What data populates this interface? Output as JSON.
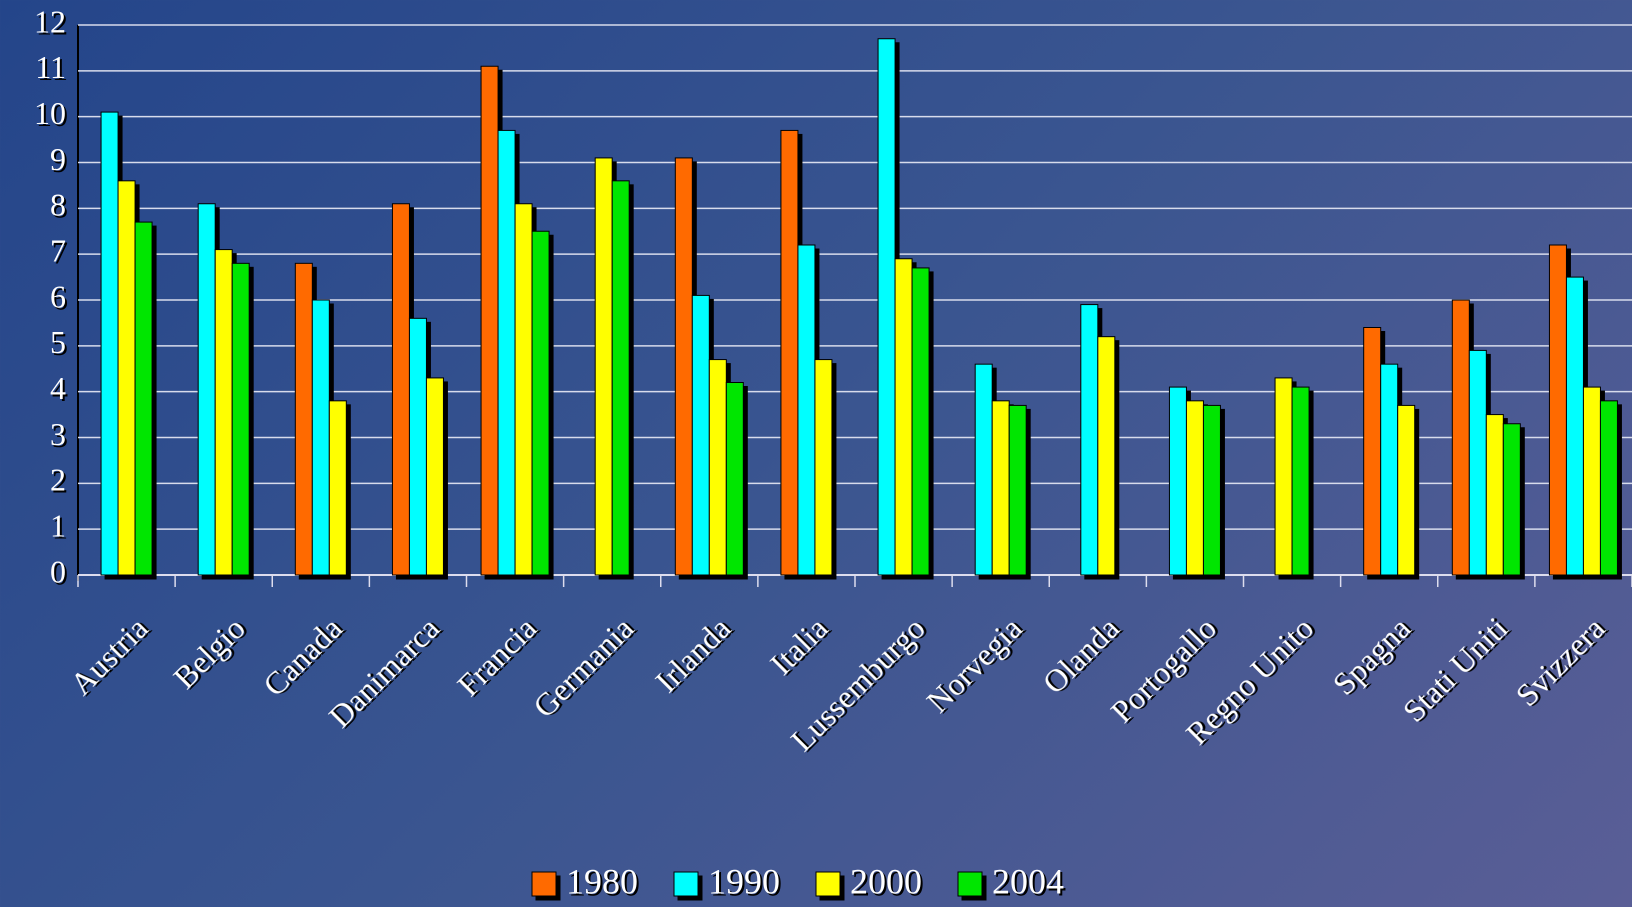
{
  "chart_data": {
    "type": "bar",
    "categories": [
      "Austria",
      "Belgio",
      "Canada",
      "Danimarca",
      "Francia",
      "Germania",
      "Irlanda",
      "Italia",
      "Lussemburgo",
      "Norvegia",
      "Olanda",
      "Portogallo",
      "Regno Unito",
      "Spagna",
      "Stati Uniti",
      "Svizzera"
    ],
    "series": [
      {
        "name": "1980",
        "color": "#ff6a00",
        "values": [
          null,
          null,
          6.8,
          8.1,
          11.1,
          null,
          9.1,
          9.7,
          null,
          null,
          null,
          null,
          null,
          5.4,
          6.0,
          7.2
        ]
      },
      {
        "name": "1990",
        "color": "#00ffff",
        "values": [
          10.1,
          8.1,
          6.0,
          5.6,
          9.7,
          null,
          6.1,
          7.2,
          11.7,
          4.6,
          5.9,
          4.1,
          null,
          4.6,
          4.9,
          6.5
        ]
      },
      {
        "name": "2000",
        "color": "#ffff00",
        "values": [
          8.6,
          7.1,
          3.8,
          4.3,
          8.1,
          9.1,
          4.7,
          4.7,
          6.9,
          3.8,
          5.2,
          3.8,
          4.3,
          3.7,
          3.5,
          4.1
        ]
      },
      {
        "name": "2004",
        "color": "#00e600",
        "values": [
          7.7,
          6.8,
          null,
          null,
          7.5,
          8.6,
          4.2,
          null,
          6.7,
          3.7,
          null,
          3.7,
          4.1,
          null,
          3.3,
          3.8
        ]
      }
    ],
    "ylim": [
      0,
      12
    ],
    "yticks": [
      0,
      1,
      2,
      3,
      4,
      5,
      6,
      7,
      8,
      9,
      10,
      11,
      12
    ],
    "grid": true,
    "legend": "bottom"
  }
}
